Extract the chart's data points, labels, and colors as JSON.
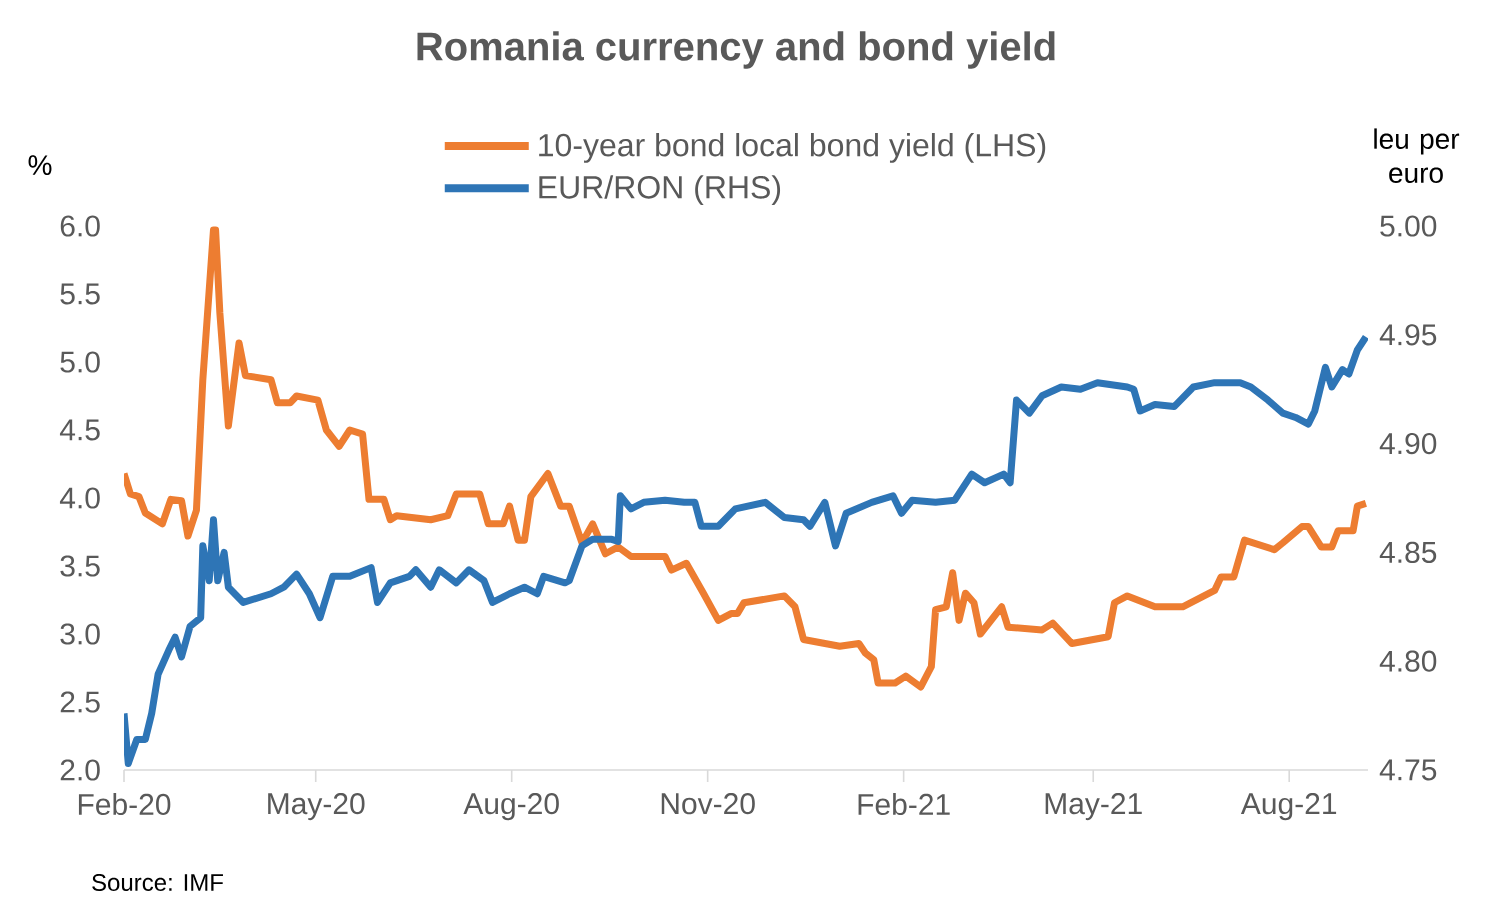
{
  "chart_data": {
    "type": "line",
    "title": "Romania currency and bond yield",
    "ylabel": "%",
    "y2label": "leu per euro",
    "annotations": [
      "Source: IMF"
    ],
    "legend": "top",
    "xlim": [
      "2020-02-01",
      "2021-09-07"
    ],
    "xticks": [
      {
        "value": "2020-02-01",
        "label": "Feb-20"
      },
      {
        "value": "2020-05-01",
        "label": "May-20"
      },
      {
        "value": "2020-08-01",
        "label": "Aug-20"
      },
      {
        "value": "2020-11-01",
        "label": "Nov-20"
      },
      {
        "value": "2021-02-01",
        "label": "Feb-21"
      },
      {
        "value": "2021-05-01",
        "label": "May-21"
      },
      {
        "value": "2021-08-01",
        "label": "Aug-21"
      }
    ],
    "ylim": [
      2.0,
      6.0
    ],
    "yticks": [
      {
        "value": 2.0,
        "label": "2.0"
      },
      {
        "value": 2.5,
        "label": "2.5"
      },
      {
        "value": 3.0,
        "label": "3.0"
      },
      {
        "value": 3.5,
        "label": "3.5"
      },
      {
        "value": 4.0,
        "label": "4.0"
      },
      {
        "value": 4.5,
        "label": "4.5"
      },
      {
        "value": 5.0,
        "label": "5.0"
      },
      {
        "value": 5.5,
        "label": "5.5"
      },
      {
        "value": 6.0,
        "label": "6.0"
      }
    ],
    "y2lim": [
      4.75,
      5.0
    ],
    "y2ticks": [
      {
        "value": 4.75,
        "label": "4.75"
      },
      {
        "value": 4.8,
        "label": "4.80"
      },
      {
        "value": 4.85,
        "label": "4.85"
      },
      {
        "value": 4.9,
        "label": "4.90"
      },
      {
        "value": 4.95,
        "label": "4.95"
      },
      {
        "value": 5.0,
        "label": "5.00"
      }
    ],
    "series": [
      {
        "name": "10-year bond local bond yield (LHS)",
        "color": "#ed7d31",
        "axis": "y",
        "x": [
          "2020-02-01",
          "2020-02-04",
          "2020-02-08",
          "2020-02-11",
          "2020-02-19",
          "2020-02-23",
          "2020-02-28",
          "2020-03-02",
          "2020-03-06",
          "2020-03-09",
          "2020-03-14",
          "2020-03-15",
          "2020-03-17",
          "2020-03-21",
          "2020-03-26",
          "2020-03-29",
          "2020-04-10",
          "2020-04-13",
          "2020-04-19",
          "2020-04-22",
          "2020-05-02",
          "2020-05-06",
          "2020-05-12",
          "2020-05-17",
          "2020-05-23",
          "2020-05-26",
          "2020-06-02",
          "2020-06-05",
          "2020-06-08",
          "2020-06-24",
          "2020-07-02",
          "2020-07-06",
          "2020-07-17",
          "2020-07-21",
          "2020-07-28",
          "2020-07-31",
          "2020-08-04",
          "2020-08-07",
          "2020-08-10",
          "2020-08-18",
          "2020-08-24",
          "2020-08-28",
          "2020-09-03",
          "2020-09-08",
          "2020-09-14",
          "2020-09-20",
          "2020-09-26",
          "2020-10-12",
          "2020-10-15",
          "2020-10-22",
          "2020-10-30",
          "2020-11-06",
          "2020-11-12",
          "2020-11-15",
          "2020-11-18",
          "2020-12-07",
          "2020-12-12",
          "2020-12-16",
          "2021-01-02",
          "2021-01-11",
          "2021-01-14",
          "2021-01-18",
          "2021-01-20",
          "2021-01-28",
          "2021-02-02",
          "2021-02-09",
          "2021-02-14",
          "2021-02-16",
          "2021-02-21",
          "2021-02-24",
          "2021-02-27",
          "2021-03-02",
          "2021-03-06",
          "2021-03-09",
          "2021-03-19",
          "2021-03-22",
          "2021-04-07",
          "2021-04-12",
          "2021-04-21",
          "2021-05-08",
          "2021-05-11",
          "2021-05-17",
          "2021-05-30",
          "2021-06-12",
          "2021-06-27",
          "2021-06-30",
          "2021-07-06",
          "2021-07-11",
          "2021-07-25",
          "2021-07-29",
          "2021-08-07",
          "2021-08-10",
          "2021-08-16",
          "2021-08-21",
          "2021-08-24",
          "2021-08-31",
          "2021-09-02",
          "2021-09-06"
        ],
        "values": [
          4.18,
          4.03,
          4.01,
          3.89,
          3.81,
          3.99,
          3.98,
          3.72,
          3.91,
          4.87,
          5.97,
          5.97,
          5.36,
          4.53,
          5.14,
          4.9,
          4.87,
          4.7,
          4.7,
          4.75,
          4.72,
          4.5,
          4.38,
          4.5,
          4.47,
          3.99,
          3.99,
          3.84,
          3.87,
          3.84,
          3.87,
          4.03,
          4.03,
          3.81,
          3.81,
          3.94,
          3.69,
          3.69,
          4.01,
          4.18,
          3.94,
          3.94,
          3.67,
          3.81,
          3.59,
          3.64,
          3.57,
          3.57,
          3.47,
          3.52,
          3.3,
          3.1,
          3.15,
          3.15,
          3.23,
          3.28,
          3.2,
          2.96,
          2.91,
          2.93,
          2.86,
          2.81,
          2.64,
          2.64,
          2.69,
          2.61,
          2.76,
          3.18,
          3.2,
          3.45,
          3.1,
          3.3,
          3.23,
          3.0,
          3.2,
          3.05,
          3.03,
          3.08,
          2.93,
          2.98,
          3.23,
          3.28,
          3.2,
          3.2,
          3.32,
          3.42,
          3.42,
          3.69,
          3.62,
          3.67,
          3.79,
          3.79,
          3.64,
          3.64,
          3.76,
          3.76,
          3.94,
          3.96
        ]
      },
      {
        "name": "EUR/RON (RHS)",
        "color": "#2e75b6",
        "axis": "y2",
        "x": [
          "2020-02-01",
          "2020-02-03",
          "2020-02-07",
          "2020-02-11",
          "2020-02-14",
          "2020-02-17",
          "2020-02-22",
          "2020-02-25",
          "2020-02-28",
          "2020-03-03",
          "2020-03-08",
          "2020-03-09",
          "2020-03-12",
          "2020-03-14",
          "2020-03-16",
          "2020-03-19",
          "2020-03-21",
          "2020-03-28",
          "2020-04-10",
          "2020-04-16",
          "2020-04-22",
          "2020-04-28",
          "2020-05-03",
          "2020-05-09",
          "2020-05-17",
          "2020-05-27",
          "2020-05-30",
          "2020-06-05",
          "2020-06-14",
          "2020-06-17",
          "2020-06-24",
          "2020-06-28",
          "2020-07-06",
          "2020-07-12",
          "2020-07-19",
          "2020-07-23",
          "2020-07-31",
          "2020-08-07",
          "2020-08-13",
          "2020-08-16",
          "2020-08-26",
          "2020-08-28",
          "2020-09-03",
          "2020-09-08",
          "2020-09-17",
          "2020-09-20",
          "2020-09-21",
          "2020-09-26",
          "2020-10-02",
          "2020-10-12",
          "2020-10-21",
          "2020-10-26",
          "2020-10-29",
          "2020-11-06",
          "2020-11-14",
          "2020-11-28",
          "2020-12-07",
          "2020-12-16",
          "2020-12-19",
          "2020-12-26",
          "2020-12-31",
          "2021-01-05",
          "2021-01-17",
          "2021-01-27",
          "2021-01-31",
          "2021-02-05",
          "2021-02-16",
          "2021-02-25",
          "2021-03-05",
          "2021-03-11",
          "2021-03-20",
          "2021-03-23",
          "2021-03-26",
          "2021-04-01",
          "2021-04-07",
          "2021-04-16",
          "2021-04-25",
          "2021-05-03",
          "2021-05-17",
          "2021-05-20",
          "2021-05-23",
          "2021-05-30",
          "2021-06-08",
          "2021-06-17",
          "2021-06-27",
          "2021-07-09",
          "2021-07-14",
          "2021-07-22",
          "2021-07-29",
          "2021-08-04",
          "2021-08-10",
          "2021-08-13",
          "2021-08-18",
          "2021-08-21",
          "2021-08-26",
          "2021-08-29",
          "2021-09-02",
          "2021-09-06"
        ],
        "values": [
          4.776,
          4.753,
          4.764,
          4.764,
          4.776,
          4.794,
          4.805,
          4.811,
          4.802,
          4.816,
          4.82,
          4.853,
          4.837,
          4.865,
          4.837,
          4.85,
          4.834,
          4.827,
          4.831,
          4.834,
          4.84,
          4.831,
          4.82,
          4.839,
          4.839,
          4.843,
          4.827,
          4.836,
          4.839,
          4.842,
          4.834,
          4.842,
          4.836,
          4.842,
          4.837,
          4.827,
          4.831,
          4.834,
          4.831,
          4.839,
          4.836,
          4.837,
          4.853,
          4.856,
          4.856,
          4.855,
          4.876,
          4.87,
          4.873,
          4.874,
          4.873,
          4.873,
          4.862,
          4.862,
          4.87,
          4.873,
          4.866,
          4.865,
          4.862,
          4.873,
          4.853,
          4.868,
          4.873,
          4.876,
          4.868,
          4.874,
          4.873,
          4.874,
          4.886,
          4.882,
          4.886,
          4.882,
          4.92,
          4.914,
          4.922,
          4.926,
          4.925,
          4.928,
          4.926,
          4.925,
          4.915,
          4.918,
          4.917,
          4.926,
          4.928,
          4.928,
          4.926,
          4.92,
          4.914,
          4.912,
          4.909,
          4.915,
          4.935,
          4.926,
          4.934,
          4.932,
          4.943,
          4.949
        ]
      }
    ]
  }
}
